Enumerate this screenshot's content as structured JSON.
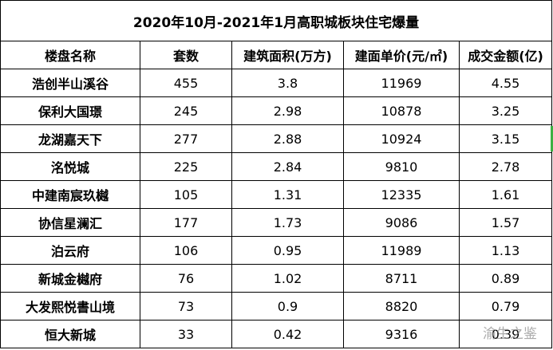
{
  "table": {
    "title": "2020年10月-2021年1月高职城板块住宅爆量",
    "header": [
      "楼盘名称",
      "套数",
      "建筑面积(万方)",
      "建面单价(元/㎡)",
      "成交金额(亿)"
    ],
    "rows": [
      [
        "浩创半山溪谷",
        "455",
        "3.8",
        "11969",
        "4.55"
      ],
      [
        "保利大国璟",
        "245",
        "2.98",
        "10878",
        "3.25"
      ],
      [
        "龙湖嘉天下",
        "277",
        "2.88",
        "10924",
        "3.15"
      ],
      [
        "洺悦城",
        "225",
        "2.84",
        "9810",
        "2.78"
      ],
      [
        "中建南宸玖樾",
        "105",
        "1.31",
        "12335",
        "1.61"
      ],
      [
        "协信星澜汇",
        "177",
        "1.73",
        "9086",
        "1.57"
      ],
      [
        "泊云府",
        "106",
        "0.95",
        "11989",
        "1.13"
      ],
      [
        "新城金樾府",
        "76",
        "1.02",
        "8711",
        "0.89"
      ],
      [
        "大发熙悦書山境",
        "73",
        "0.9",
        "8820",
        "0.79"
      ],
      [
        "恒大新城",
        "33",
        "0.42",
        "9316",
        "0.39"
      ]
    ]
  },
  "watermark": "渝生之鉴"
}
